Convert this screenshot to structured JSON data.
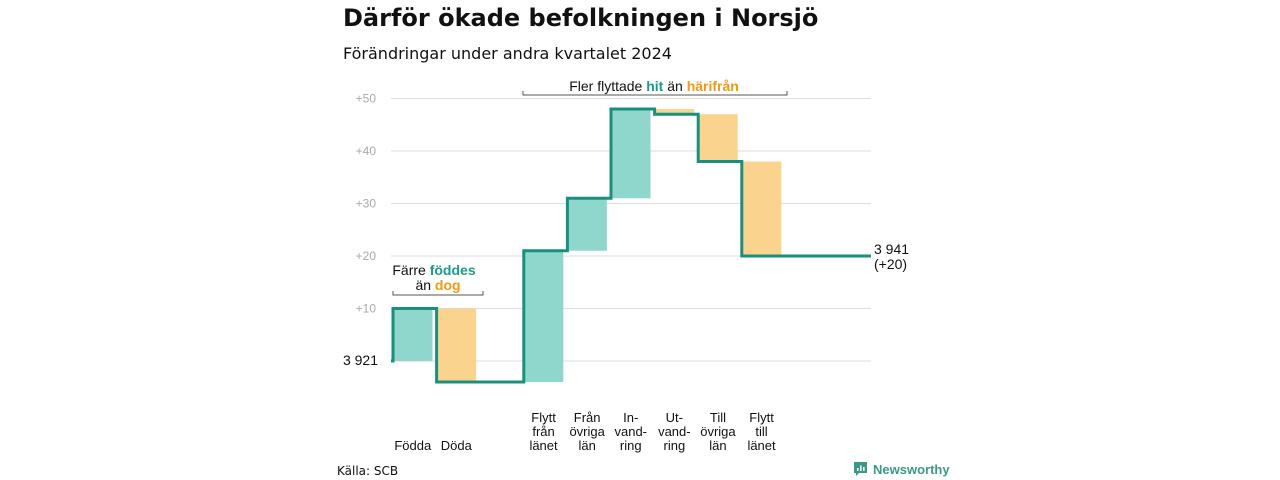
{
  "title": "Därför ökade befolkningen i Norsjö",
  "subtitle": "Förändringar under andra kvartalet 2024",
  "source": "Källa: SCB",
  "brand": "Newsworthy",
  "colors": {
    "increase": "#8fd6cc",
    "decrease": "#fad48e",
    "line": "#19907e",
    "accent_increase": "#1e9a88",
    "accent_decrease": "#ee9a16",
    "grid": "#dddddd",
    "tick": "#aaaaaa"
  },
  "annotations": {
    "left": {
      "line1_prefix": "Färre ",
      "line1_highlight": "föddes",
      "line2_prefix": "än ",
      "line2_highlight": "dog"
    },
    "top": {
      "prefix": "Fler flyttade ",
      "highlight1": "hit",
      "middle": " än ",
      "highlight2": "härifrån"
    }
  },
  "chart_data": {
    "type": "waterfall",
    "title": "Därför ökade befolkningen i Norsjö",
    "subtitle": "Förändringar under andra kvartalet 2024",
    "start_label": "3 921",
    "end_label": "3 941",
    "end_change_label": "(+20)",
    "start_value": 3921,
    "end_value": 3941,
    "ylim": [
      -4,
      52
    ],
    "yticks": [
      {
        "value": 10,
        "label": "+10"
      },
      {
        "value": 20,
        "label": "+20"
      },
      {
        "value": 30,
        "label": "+30"
      },
      {
        "value": 40,
        "label": "+40"
      },
      {
        "value": 50,
        "label": "+50"
      }
    ],
    "grid": true,
    "steps": [
      {
        "label": [
          "Födda"
        ],
        "change": 10
      },
      {
        "label": [
          "Döda"
        ],
        "change": -14
      },
      {
        "label": [],
        "change": 0
      },
      {
        "label": [
          "Flytt",
          "från",
          "länet"
        ],
        "change": 25
      },
      {
        "label": [
          "Från",
          "övriga",
          "län"
        ],
        "change": 10
      },
      {
        "label": [
          "In-",
          "vand-",
          "ring"
        ],
        "change": 17
      },
      {
        "label": [
          "Ut-",
          "vand-",
          "ring"
        ],
        "change": -1
      },
      {
        "label": [
          "Till",
          "övriga",
          "län"
        ],
        "change": -9
      },
      {
        "label": [
          "Flytt",
          "till",
          "länet"
        ],
        "change": -18
      }
    ]
  }
}
